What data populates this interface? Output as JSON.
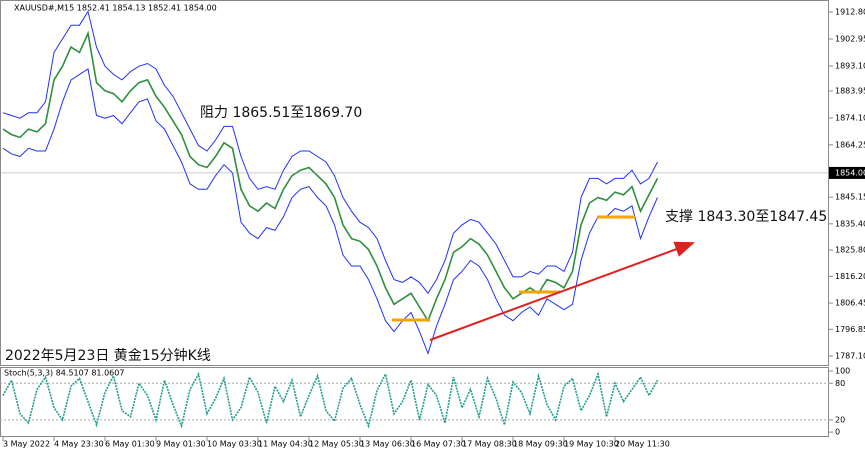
{
  "chart_data": [
    {
      "type": "line",
      "title": "XAUUSD#,M15 1852.41 1854.13 1852.41 1854.00",
      "annotations": [
        "阻力 1865.51至1869.70",
        "支撑 1843.30至1847.45",
        "2022年5月23日 黄金15分钟K线"
      ],
      "categories": [
        "3 May 2022",
        null,
        null,
        null,
        null,
        null,
        "4 May 23:30",
        null,
        null,
        null,
        null,
        null,
        "6 May 01:30",
        null,
        null,
        null,
        null,
        null,
        "9 May 01:30",
        null,
        null,
        null,
        null,
        null,
        "10 May 03:30",
        null,
        null,
        null,
        null,
        null,
        "11 May 04:30",
        null,
        null,
        null,
        null,
        null,
        "12 May 05:30",
        null,
        null,
        null,
        null,
        null,
        "13 May 06:30",
        null,
        null,
        null,
        null,
        null,
        "16 May 07:30",
        null,
        null,
        null,
        null,
        null,
        "17 May 08:30",
        null,
        null,
        null,
        null,
        null,
        "18 May 09:30",
        null,
        null,
        null,
        null,
        null,
        "19 May 10:30",
        null,
        null,
        null,
        null,
        null,
        "20 May 11:30",
        null,
        null,
        null,
        null,
        null
      ],
      "series": [
        {
          "name": "close",
          "color": "#2f8f3f",
          "values": [
            1870,
            1868,
            1867,
            1870,
            1869,
            1872,
            1888,
            1893,
            1900,
            1898,
            1905,
            1887,
            1884,
            1883,
            1880,
            1884,
            1887,
            1888,
            1882,
            1878,
            1873,
            1868,
            1860,
            1857,
            1856,
            1860,
            1865,
            1863,
            1848,
            1842,
            1840,
            1843,
            1841,
            1848,
            1853,
            1855,
            1856,
            1853,
            1850,
            1845,
            1835,
            1830,
            1829,
            1826,
            1820,
            1812,
            1806,
            1808,
            1810,
            1805,
            1800,
            1808,
            1815,
            1825,
            1827,
            1830,
            1828,
            1824,
            1818,
            1812,
            1808,
            1810,
            1812,
            1810,
            1815,
            1814,
            1812,
            1818,
            1835,
            1843,
            1845,
            1844,
            1847,
            1846,
            1849,
            1840,
            1846,
            1852
          ]
        },
        {
          "name": "upper",
          "color": "#2233ee",
          "values": [
            1876,
            1875,
            1874,
            1876,
            1876,
            1880,
            1898,
            1903,
            1908,
            1908,
            1913,
            1900,
            1893,
            1890,
            1888,
            1891,
            1893,
            1894,
            1892,
            1886,
            1882,
            1876,
            1870,
            1864,
            1862,
            1866,
            1871,
            1871,
            1860,
            1852,
            1848,
            1849,
            1848,
            1855,
            1860,
            1862,
            1862,
            1860,
            1858,
            1853,
            1845,
            1840,
            1836,
            1834,
            1830,
            1822,
            1815,
            1814,
            1816,
            1814,
            1810,
            1815,
            1822,
            1832,
            1835,
            1837,
            1836,
            1832,
            1828,
            1822,
            1816,
            1816,
            1818,
            1817,
            1820,
            1820,
            1818,
            1825,
            1845,
            1852,
            1852,
            1850,
            1852,
            1852,
            1855,
            1850,
            1852,
            1858
          ]
        },
        {
          "name": "lower",
          "color": "#2233ee",
          "values": [
            1863,
            1861,
            1860,
            1863,
            1862,
            1862,
            1870,
            1880,
            1888,
            1890,
            1892,
            1875,
            1874,
            1875,
            1872,
            1876,
            1880,
            1881,
            1873,
            1870,
            1864,
            1858,
            1850,
            1848,
            1848,
            1853,
            1857,
            1854,
            1836,
            1832,
            1830,
            1834,
            1833,
            1838,
            1845,
            1848,
            1849,
            1845,
            1842,
            1835,
            1824,
            1820,
            1820,
            1815,
            1808,
            1800,
            1796,
            1800,
            1803,
            1796,
            1788,
            1798,
            1806,
            1815,
            1818,
            1822,
            1820,
            1815,
            1808,
            1802,
            1800,
            1803,
            1805,
            1802,
            1808,
            1806,
            1804,
            1806,
            1822,
            1832,
            1838,
            1838,
            1841,
            1840,
            1842,
            1830,
            1838,
            1845
          ]
        }
      ],
      "ylim": [
        1783.8,
        1917.2
      ],
      "yticks": [
        {
          "value": 1912.8,
          "label": "1912.80"
        },
        {
          "value": 1902.95,
          "label": "1902.95"
        },
        {
          "value": 1893.1,
          "label": "1893.10"
        },
        {
          "value": 1883.95,
          "label": "1883.95"
        },
        {
          "value": 1874.1,
          "label": "1874.10"
        },
        {
          "value": 1864.25,
          "label": "1864.25"
        },
        {
          "value": 1845.15,
          "label": "1845.15"
        },
        {
          "value": 1835.4,
          "label": "1835.40"
        },
        {
          "value": 1825.8,
          "label": "1825.80"
        },
        {
          "value": 1816.2,
          "label": "1816.20"
        },
        {
          "value": 1806.45,
          "label": "1806.45"
        },
        {
          "value": 1796.85,
          "label": "1796.85"
        },
        {
          "value": 1787.1,
          "label": "1787.10"
        }
      ],
      "last_price": {
        "value": 1854.0,
        "label": "1854.00"
      }
    },
    {
      "type": "line",
      "title": "Stoch(5,3,3) 84.5107 81.0607",
      "series": [
        {
          "name": "Stoch",
          "color": "#1e9e8e",
          "values": [
            60,
            85,
            30,
            15,
            70,
            90,
            40,
            20,
            75,
            88,
            50,
            12,
            65,
            92,
            35,
            25,
            80,
            60,
            20,
            85,
            45,
            10,
            70,
            95,
            30,
            55,
            88,
            20,
            40,
            90,
            65,
            15,
            75,
            50,
            85,
            25,
            60,
            92,
            35,
            18,
            72,
            88,
            45,
            10,
            68,
            95,
            30,
            50,
            85,
            20,
            78,
            60,
            15,
            90,
            40,
            70,
            25,
            88,
            55,
            12,
            82,
            65,
            30,
            92,
            45,
            20,
            75,
            88,
            35,
            60,
            95,
            25,
            80,
            50,
            70,
            90,
            60,
            85
          ]
        }
      ],
      "ylim": [
        -8,
        105
      ],
      "yticks": [
        100,
        80,
        20,
        0
      ]
    }
  ]
}
